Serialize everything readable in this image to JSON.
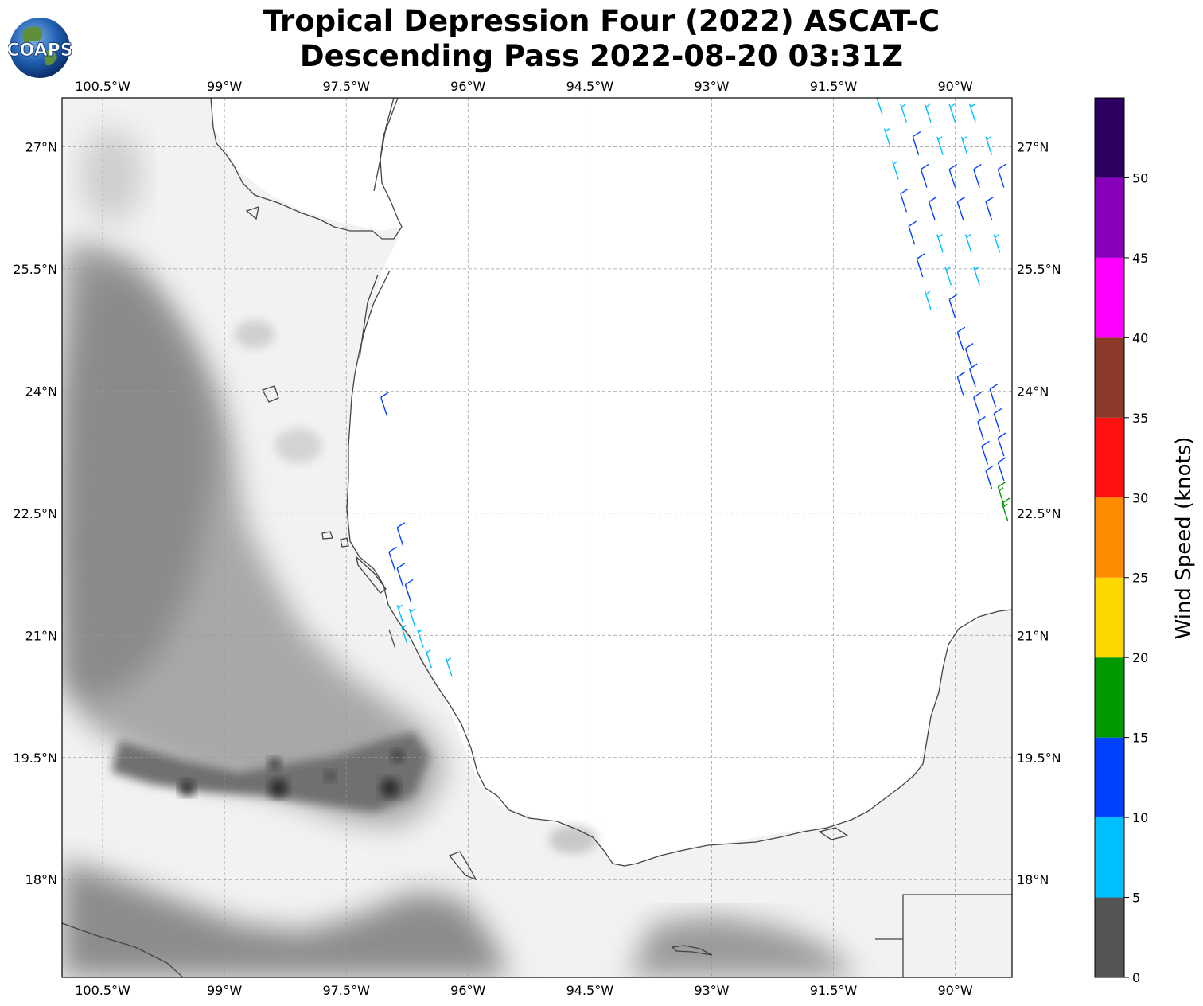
{
  "title_line1": "Tropical Depression Four (2022) ASCAT-C",
  "title_line2": "Descending Pass 2022-08-20 03:31Z",
  "logo_text": "COAPS",
  "extent": {
    "lon_min": -101.0,
    "lon_max": -89.3,
    "lat_min": 16.8,
    "lat_max": 27.6
  },
  "lon_ticks": [
    "100.5°W",
    "99°W",
    "97.5°W",
    "96°W",
    "94.5°W",
    "93°W",
    "91.5°W",
    "90°W"
  ],
  "lon_values": [
    -100.5,
    -99,
    -97.5,
    -96,
    -94.5,
    -93,
    -91.5,
    -90
  ],
  "lat_ticks": [
    "27°N",
    "25.5°N",
    "24°N",
    "22.5°N",
    "21°N",
    "19.5°N",
    "18°N"
  ],
  "lat_values": [
    27,
    25.5,
    24,
    22.5,
    21,
    19.5,
    18
  ],
  "colorbar": {
    "label": "Wind Speed (knots)",
    "tick_labels": [
      "0",
      "5",
      "10",
      "15",
      "20",
      "25",
      "30",
      "35",
      "40",
      "45",
      "50"
    ],
    "bins": [
      {
        "min": 0,
        "max": 5,
        "color": "#555555"
      },
      {
        "min": 5,
        "max": 10,
        "color": "#00bfff"
      },
      {
        "min": 10,
        "max": 15,
        "color": "#0040ff"
      },
      {
        "min": 15,
        "max": 20,
        "color": "#009900"
      },
      {
        "min": 20,
        "max": 25,
        "color": "#ffd700"
      },
      {
        "min": 25,
        "max": 30,
        "color": "#ff8c00"
      },
      {
        "min": 30,
        "max": 35,
        "color": "#ff1111"
      },
      {
        "min": 35,
        "max": 40,
        "color": "#8b3a2a"
      },
      {
        "min": 40,
        "max": 45,
        "color": "#ff00ff"
      },
      {
        "min": 45,
        "max": 50,
        "color": "#8800bb"
      },
      {
        "min": 50,
        "max": 55,
        "color": "#2c0060"
      }
    ]
  },
  "wind_barbs": [
    {
      "lon": -97.0,
      "lat": 23.7,
      "speed": 12
    },
    {
      "lon": -96.8,
      "lat": 22.1,
      "speed": 12
    },
    {
      "lon": -96.9,
      "lat": 21.8,
      "speed": 11
    },
    {
      "lon": -96.8,
      "lat": 21.6,
      "speed": 11
    },
    {
      "lon": -96.7,
      "lat": 21.4,
      "speed": 10
    },
    {
      "lon": -96.8,
      "lat": 21.15,
      "speed": 8
    },
    {
      "lon": -96.65,
      "lat": 21.1,
      "speed": 8
    },
    {
      "lon": -96.75,
      "lat": 20.9,
      "speed": 7
    },
    {
      "lon": -96.55,
      "lat": 20.85,
      "speed": 7
    },
    {
      "lon": -96.45,
      "lat": 20.6,
      "speed": 7
    },
    {
      "lon": -96.2,
      "lat": 20.5,
      "speed": 7
    },
    {
      "lon": -96.9,
      "lat": 20.85,
      "speed": 3
    },
    {
      "lon": -90.9,
      "lat": 27.4,
      "speed": 8
    },
    {
      "lon": -90.8,
      "lat": 27.0,
      "speed": 8
    },
    {
      "lon": -90.7,
      "lat": 26.6,
      "speed": 8
    },
    {
      "lon": -90.6,
      "lat": 26.2,
      "speed": 11
    },
    {
      "lon": -90.5,
      "lat": 25.8,
      "speed": 11
    },
    {
      "lon": -90.4,
      "lat": 25.4,
      "speed": 11
    },
    {
      "lon": -90.3,
      "lat": 25.0,
      "speed": 8
    },
    {
      "lon": -90.6,
      "lat": 27.3,
      "speed": 8
    },
    {
      "lon": -90.45,
      "lat": 26.9,
      "speed": 11
    },
    {
      "lon": -90.35,
      "lat": 26.5,
      "speed": 11
    },
    {
      "lon": -90.25,
      "lat": 26.1,
      "speed": 11
    },
    {
      "lon": -90.15,
      "lat": 25.7,
      "speed": 8
    },
    {
      "lon": -90.05,
      "lat": 25.3,
      "speed": 8
    },
    {
      "lon": -90.0,
      "lat": 24.9,
      "speed": 11
    },
    {
      "lon": -89.9,
      "lat": 24.5,
      "speed": 11
    },
    {
      "lon": -90.3,
      "lat": 27.3,
      "speed": 8
    },
    {
      "lon": -90.15,
      "lat": 26.9,
      "speed": 8
    },
    {
      "lon": -90.0,
      "lat": 26.5,
      "speed": 11
    },
    {
      "lon": -89.9,
      "lat": 26.1,
      "speed": 11
    },
    {
      "lon": -89.8,
      "lat": 25.7,
      "speed": 8
    },
    {
      "lon": -89.7,
      "lat": 25.3,
      "speed": 8
    },
    {
      "lon": -90.0,
      "lat": 27.3,
      "speed": 8
    },
    {
      "lon": -89.85,
      "lat": 26.9,
      "speed": 8
    },
    {
      "lon": -89.7,
      "lat": 26.5,
      "speed": 11
    },
    {
      "lon": -89.55,
      "lat": 26.1,
      "speed": 11
    },
    {
      "lon": -89.45,
      "lat": 25.7,
      "speed": 8
    },
    {
      "lon": -89.75,
      "lat": 27.3,
      "speed": 8
    },
    {
      "lon": -89.55,
      "lat": 26.9,
      "speed": 8
    },
    {
      "lon": -89.4,
      "lat": 26.5,
      "speed": 11
    },
    {
      "lon": -89.8,
      "lat": 24.3,
      "speed": 11
    },
    {
      "lon": -89.75,
      "lat": 24.05,
      "speed": 12
    },
    {
      "lon": -89.9,
      "lat": 23.95,
      "speed": 12
    },
    {
      "lon": -89.7,
      "lat": 23.7,
      "speed": 12
    },
    {
      "lon": -89.5,
      "lat": 23.8,
      "speed": 12
    },
    {
      "lon": -89.65,
      "lat": 23.4,
      "speed": 12
    },
    {
      "lon": -89.45,
      "lat": 23.5,
      "speed": 12
    },
    {
      "lon": -89.6,
      "lat": 23.1,
      "speed": 12
    },
    {
      "lon": -89.4,
      "lat": 23.2,
      "speed": 12
    },
    {
      "lon": -89.55,
      "lat": 22.8,
      "speed": 12
    },
    {
      "lon": -89.4,
      "lat": 22.9,
      "speed": 12
    },
    {
      "lon": -89.4,
      "lat": 22.6,
      "speed": 16
    },
    {
      "lon": -89.35,
      "lat": 22.4,
      "speed": 16
    }
  ]
}
